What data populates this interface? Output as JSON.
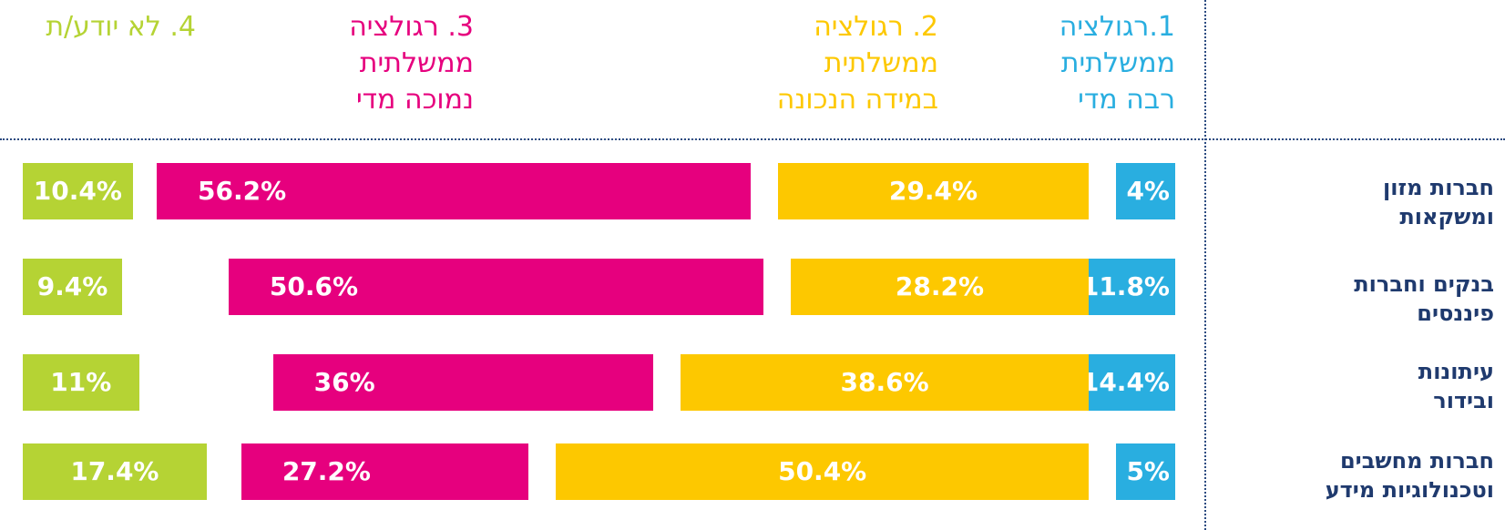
{
  "chart_data": {
    "type": "bar",
    "categories": [
      "חברות מזון\nומשקאות",
      "בנקים וחברות\nפיננסים",
      "עיתונות\nובידור",
      "חברות מחשבים\nוטכנולוגיות מידע"
    ],
    "series": [
      {
        "name": "1.רגולציה\nממשלתית\nרבה מדי",
        "color": "#29aee0",
        "values": [
          4,
          11.8,
          14.4,
          5
        ],
        "value_labels": [
          "4%",
          "11.8%",
          "14.4%",
          "5%"
        ]
      },
      {
        "name": "2. רגולציה\nממשלתית\nבמידה הנכונה",
        "color": "#fdc800",
        "values": [
          29.4,
          28.2,
          38.6,
          50.4
        ],
        "value_labels": [
          "29.4%",
          "28.2%",
          "38.6%",
          "50.4%"
        ]
      },
      {
        "name": "3. רגולציה\nממשלתית\nנמוכה מדי",
        "color": "#e6007e",
        "values": [
          56.2,
          50.6,
          36,
          27.2
        ],
        "value_labels": [
          "56.2%",
          "50.6%",
          "36%",
          "27.2%"
        ]
      },
      {
        "name": "4. לא יודע/ת",
        "color": "#b5d334",
        "values": [
          10.4,
          9.4,
          11,
          17.4
        ],
        "value_labels": [
          "10.4%",
          "9.4%",
          "11%",
          "17.4%"
        ]
      }
    ]
  }
}
